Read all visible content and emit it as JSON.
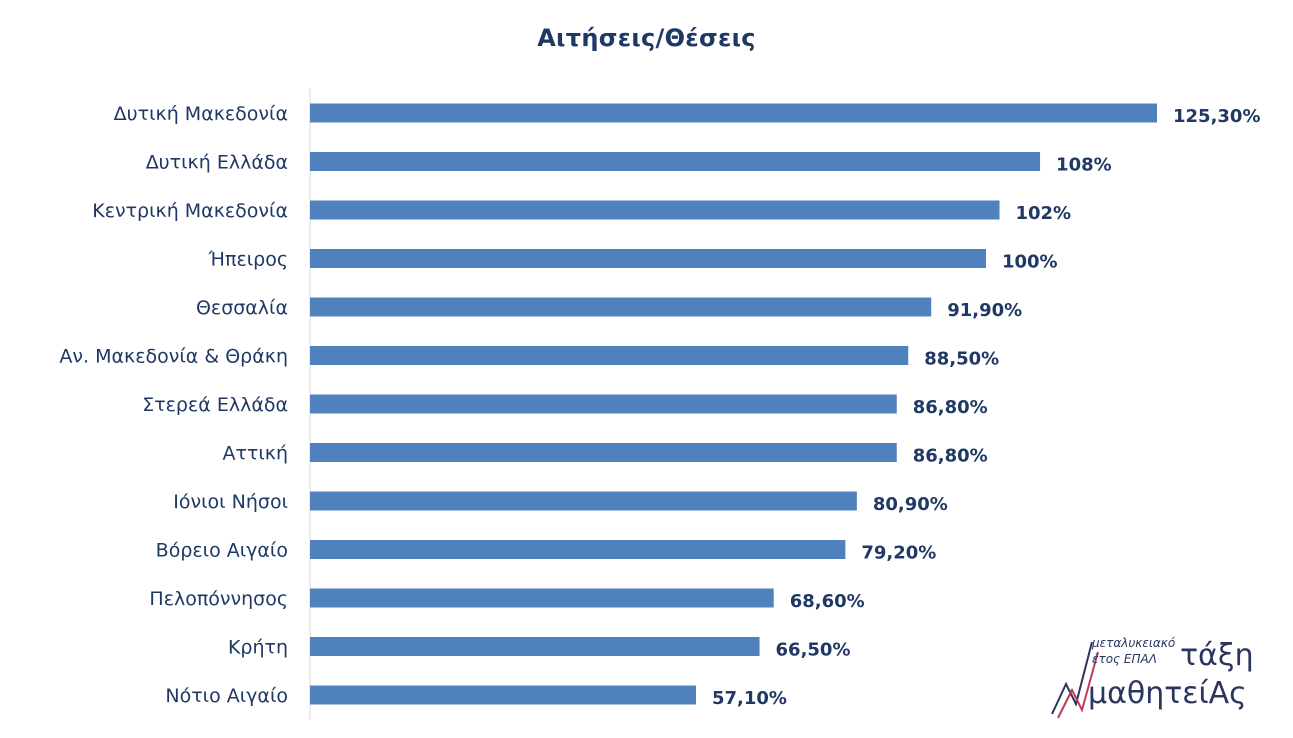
{
  "chart_data": {
    "type": "bar",
    "orientation": "horizontal",
    "title": "Αιτήσεις/Θέσεις",
    "categories": [
      "Δυτική Μακεδονία",
      "Δυτική Ελλάδα",
      "Κεντρική Μακεδονία",
      "Ήπειρος",
      "Θεσσαλία",
      "Αν. Μακεδονία & Θράκη",
      "Στερεά Ελλάδα",
      "Αττική",
      "Ιόνιοι Νήσοι",
      "Βόρειο Αιγαίο",
      "Πελοπόννησος",
      "Κρήτη",
      "Νότιο Αιγαίο"
    ],
    "values": [
      125.3,
      108,
      102,
      100,
      91.9,
      88.5,
      86.8,
      86.8,
      80.9,
      79.2,
      68.6,
      66.5,
      57.1
    ],
    "value_labels": [
      "125,30%",
      "108%",
      "102%",
      "100%",
      "91,90%",
      "88,50%",
      "86,80%",
      "86,80%",
      "80,90%",
      "79,20%",
      "68,60%",
      "66,50%",
      "57,10%"
    ],
    "xlim": [
      0,
      125.3
    ],
    "grid": false,
    "bar_color": "#4f81bd"
  },
  "logo": {
    "small_line1": "μεταλυκειακό",
    "small_line2": "έτος ΕΠΑΛ",
    "big_line1": "τάξη",
    "big_line2": "μαθητείΑς"
  },
  "colors": {
    "text": "#1f3864",
    "axis": "#d9d9d9",
    "logo_accent": "#c0395a"
  }
}
